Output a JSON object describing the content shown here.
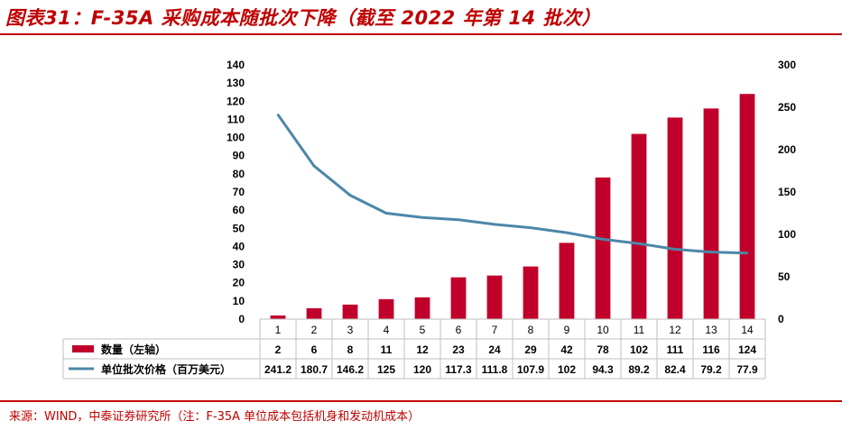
{
  "title": "图表31：F-35A 采购成本随批次下降（截至 2022 年第 14 批次）",
  "source": "来源：WIND，中泰证券研究所（注：F-35A 单位成本包括机身和发动机成本）",
  "colors": {
    "bar": "#c0002b",
    "line": "#4c87a8",
    "accent": "#c00000"
  },
  "chart_data": {
    "type": "bar",
    "categories": [
      "1",
      "2",
      "3",
      "4",
      "5",
      "6",
      "7",
      "8",
      "9",
      "10",
      "11",
      "12",
      "13",
      "14"
    ],
    "series": [
      {
        "name": "数量（左轴）",
        "type": "bar",
        "axis": "left",
        "values": [
          2,
          6,
          8,
          11,
          12,
          23,
          24,
          29,
          42,
          78,
          102,
          111,
          116,
          124
        ]
      },
      {
        "name": "单位批次价格（百万美元）",
        "type": "line",
        "axis": "right",
        "values": [
          241.2,
          180.7,
          146.2,
          125,
          120,
          117.3,
          111.8,
          107.9,
          102,
          94.3,
          89.2,
          82.4,
          79.2,
          77.9
        ]
      }
    ],
    "y_left": {
      "ylim": [
        0,
        140
      ],
      "ticks": [
        0,
        10,
        20,
        30,
        40,
        50,
        60,
        70,
        80,
        90,
        100,
        110,
        120,
        130,
        140
      ]
    },
    "y_right": {
      "ylim": [
        0,
        300
      ],
      "ticks": [
        0,
        50,
        100,
        150,
        200,
        250,
        300
      ]
    },
    "table": {
      "rows": [
        {
          "label": "数量（左轴）",
          "cells": [
            "2",
            "6",
            "8",
            "11",
            "12",
            "23",
            "24",
            "29",
            "42",
            "78",
            "102",
            "111",
            "116",
            "124"
          ]
        },
        {
          "label": "单位批次价格（百万美元）",
          "cells": [
            "241.2",
            "180.7",
            "146.2",
            "125",
            "120",
            "117.3",
            "111.8",
            "107.9",
            "102",
            "94.3",
            "89.2",
            "82.4",
            "79.2",
            "77.9"
          ]
        }
      ]
    }
  }
}
